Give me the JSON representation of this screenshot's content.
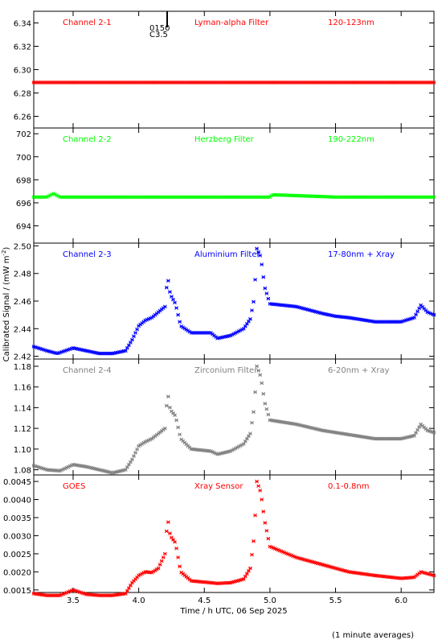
{
  "page": {
    "xlabel": "Time / h UTC, 06 Sep 2025",
    "ylabel": "Calibrated Signal / (mW m",
    "ylabel_sup": "-2",
    "ylabel_close": ")",
    "footnote": "(1 minute averages)",
    "marker_text_1": "0150",
    "marker_text_2": "C3.5"
  },
  "chart_data": [
    {
      "type": "scatter",
      "labels": [
        "Channel 2-1",
        "Lyman-alpha Filter",
        "120-123nm"
      ],
      "color": "#ff0000",
      "ylim": [
        6.25,
        6.35
      ],
      "yticks": [
        6.26,
        6.28,
        6.3,
        6.32,
        6.34
      ],
      "ytick_labels": [
        "6.26",
        "6.28",
        "6.30",
        "6.32",
        "6.34"
      ],
      "x": [
        3.2,
        6.25
      ],
      "y": [
        6.289,
        6.289
      ]
    },
    {
      "type": "scatter",
      "labels": [
        "Channel 2-2",
        "Herzberg Filter",
        "190-222nm"
      ],
      "color": "#00ff00",
      "ylim": [
        692.5,
        702.5
      ],
      "yticks": [
        694,
        696,
        698,
        700,
        702
      ],
      "ytick_labels": [
        "694",
        "696",
        "698",
        "700",
        "702"
      ],
      "x": [
        3.2,
        3.3,
        3.35,
        3.4,
        4.6,
        5.0,
        5.02,
        5.5,
        6.25
      ],
      "y": [
        696.5,
        696.5,
        696.8,
        696.5,
        696.5,
        696.5,
        696.7,
        696.5,
        696.5
      ]
    },
    {
      "type": "scatter",
      "labels": [
        "Channel 2-3",
        "Aluminium Filter",
        "17-80nm + Xray"
      ],
      "color": "#0000ff",
      "ylim": [
        2.418,
        2.502
      ],
      "yticks": [
        2.42,
        2.44,
        2.46,
        2.48,
        2.5
      ],
      "ytick_labels": [
        "2.42",
        "2.44",
        "2.46",
        "2.48",
        "2.50"
      ],
      "x": [
        3.2,
        3.3,
        3.38,
        3.5,
        3.6,
        3.7,
        3.8,
        3.9,
        3.95,
        4.0,
        4.05,
        4.1,
        4.15,
        4.2,
        4.22,
        4.24,
        4.28,
        4.32,
        4.4,
        4.55,
        4.6,
        4.7,
        4.8,
        4.85,
        4.88,
        4.9,
        4.93,
        4.96,
        5.0,
        5.2,
        5.4,
        5.5,
        5.6,
        5.8,
        6.0,
        6.1,
        6.15,
        6.2,
        6.25
      ],
      "y": [
        2.427,
        2.424,
        2.422,
        2.426,
        2.424,
        2.422,
        2.422,
        2.424,
        2.432,
        2.442,
        2.446,
        2.448,
        2.452,
        2.456,
        2.478,
        2.465,
        2.458,
        2.442,
        2.437,
        2.437,
        2.433,
        2.435,
        2.44,
        2.447,
        2.462,
        2.498,
        2.492,
        2.47,
        2.458,
        2.456,
        2.451,
        2.449,
        2.448,
        2.445,
        2.445,
        2.448,
        2.457,
        2.452,
        2.45
      ]
    },
    {
      "type": "scatter",
      "labels": [
        "Channel 2-4",
        "Zirconium Filter",
        "6-20nm + Xray"
      ],
      "color": "#808080",
      "ylim": [
        1.075,
        1.187
      ],
      "yticks": [
        1.08,
        1.1,
        1.12,
        1.14,
        1.16,
        1.18
      ],
      "ytick_labels": [
        "1.08",
        "1.10",
        "1.12",
        "1.14",
        "1.16",
        "1.18"
      ],
      "x": [
        3.2,
        3.3,
        3.4,
        3.5,
        3.6,
        3.7,
        3.8,
        3.9,
        3.95,
        4.0,
        4.05,
        4.1,
        4.15,
        4.2,
        4.22,
        4.24,
        4.28,
        4.32,
        4.4,
        4.55,
        4.6,
        4.7,
        4.8,
        4.85,
        4.88,
        4.9,
        4.93,
        4.96,
        5.0,
        5.2,
        5.4,
        5.5,
        5.6,
        5.8,
        6.0,
        6.1,
        6.15,
        6.2,
        6.25
      ],
      "y": [
        1.084,
        1.08,
        1.079,
        1.085,
        1.083,
        1.08,
        1.077,
        1.08,
        1.09,
        1.103,
        1.107,
        1.11,
        1.115,
        1.12,
        1.155,
        1.138,
        1.132,
        1.11,
        1.1,
        1.098,
        1.095,
        1.098,
        1.105,
        1.115,
        1.14,
        1.18,
        1.17,
        1.145,
        1.128,
        1.124,
        1.118,
        1.116,
        1.114,
        1.11,
        1.11,
        1.113,
        1.124,
        1.118,
        1.116
      ]
    },
    {
      "type": "scatter",
      "labels": [
        "GOES",
        "Xray Sensor",
        "0.1-0.8nm"
      ],
      "color": "#ff0000",
      "ylim": [
        0.00143,
        0.00468
      ],
      "yticks": [
        0.0015,
        0.002,
        0.0025,
        0.003,
        0.0035,
        0.004,
        0.0045
      ],
      "ytick_labels": [
        "0.0015",
        "0.0020",
        "0.0025",
        "0.0030",
        "0.0035",
        "0.0040",
        "0.0045"
      ],
      "xlim": [
        3.2,
        6.25
      ],
      "xticks": [
        3.5,
        4.0,
        4.5,
        5.0,
        5.5,
        6.0
      ],
      "xtick_labels": [
        "3.5",
        "4.0",
        "4.5",
        "5.0",
        "5.5",
        "6.0"
      ],
      "x": [
        3.2,
        3.3,
        3.4,
        3.5,
        3.6,
        3.7,
        3.8,
        3.9,
        3.95,
        4.0,
        4.05,
        4.1,
        4.15,
        4.2,
        4.22,
        4.24,
        4.28,
        4.32,
        4.4,
        4.55,
        4.6,
        4.7,
        4.8,
        4.85,
        4.88,
        4.9,
        4.93,
        4.96,
        5.0,
        5.2,
        5.4,
        5.5,
        5.6,
        5.8,
        6.0,
        6.1,
        6.15,
        6.2,
        6.25
      ],
      "y": [
        0.0014,
        0.00135,
        0.00135,
        0.0015,
        0.00138,
        0.00135,
        0.00135,
        0.0014,
        0.0017,
        0.0019,
        0.002,
        0.00198,
        0.0021,
        0.0025,
        0.0035,
        0.003,
        0.0028,
        0.002,
        0.00175,
        0.0017,
        0.00168,
        0.0017,
        0.0018,
        0.0021,
        0.003,
        0.0045,
        0.0042,
        0.0034,
        0.0027,
        0.0024,
        0.0022,
        0.0021,
        0.002,
        0.0019,
        0.00182,
        0.00185,
        0.002,
        0.00195,
        0.0019
      ]
    }
  ]
}
